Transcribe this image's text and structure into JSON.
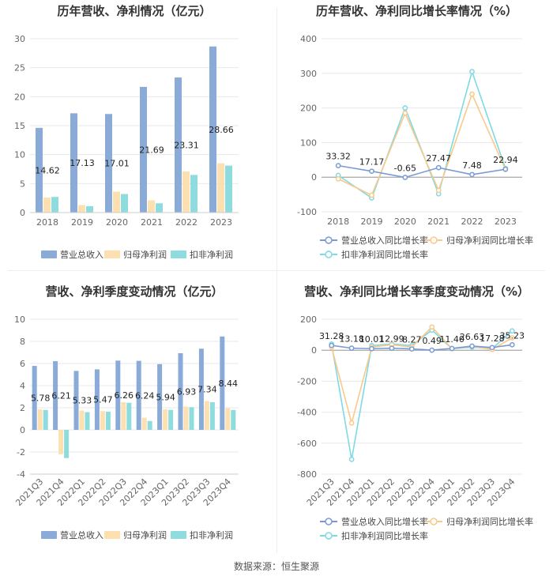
{
  "source": "数据来源：恒生聚源",
  "colors": {
    "revenue": "#8aaad8",
    "net": "#fde0b0",
    "deducted": "#8fdcde",
    "line_revenue": "#7a9ad6",
    "line_net": "#f9c98a",
    "line_deducted": "#7fd9e2"
  },
  "chart_data": [
    {
      "type": "bar",
      "title": "历年营收、净利情况（亿元）",
      "categories": [
        "2018",
        "2019",
        "2020",
        "2021",
        "2022",
        "2023"
      ],
      "series": [
        {
          "name": "营业总收入",
          "values": [
            14.62,
            17.13,
            17.01,
            21.69,
            23.31,
            28.66
          ]
        },
        {
          "name": "归母净利润",
          "values": [
            2.6,
            1.3,
            3.6,
            2.1,
            7.1,
            8.5
          ]
        },
        {
          "name": "扣非净利润",
          "values": [
            2.7,
            1.1,
            3.2,
            1.6,
            6.5,
            8.1
          ]
        }
      ],
      "labels": [
        "14.62",
        "17.13",
        "17.01",
        "21.69",
        "23.31",
        "28.66"
      ],
      "ylim": [
        0,
        30
      ],
      "yticks": [
        "0",
        "5",
        "10",
        "15",
        "20",
        "25",
        "30"
      ]
    },
    {
      "type": "line",
      "title": "历年营收、净利同比增长率情况（%）",
      "categories": [
        "2018",
        "2019",
        "2020",
        "2021",
        "2022",
        "2023"
      ],
      "series": [
        {
          "name": "营业总收入同比增长率",
          "values": [
            33.32,
            17.17,
            -0.65,
            27.47,
            7.48,
            22.94
          ]
        },
        {
          "name": "归母净利润同比增长率",
          "values": [
            -5,
            -52,
            185,
            -38,
            240,
            22
          ]
        },
        {
          "name": "扣非净利润同比增长率",
          "values": [
            5,
            -60,
            200,
            -48,
            305,
            25
          ]
        }
      ],
      "labels": [
        "33.32",
        "17.17",
        "-0.65",
        "27.47",
        "7.48",
        "22.94"
      ],
      "ylim": [
        -100,
        400
      ],
      "yticks": [
        "-100",
        "0",
        "100",
        "200",
        "300",
        "400"
      ]
    },
    {
      "type": "bar",
      "title": "营收、净利季度变动情况（亿元）",
      "categories": [
        "2021Q3",
        "2021Q4",
        "2022Q1",
        "2022Q2",
        "2022Q3",
        "2022Q4",
        "2023Q1",
        "2023Q2",
        "2023Q3",
        "2023Q4"
      ],
      "series": [
        {
          "name": "营业总收入",
          "values": [
            5.78,
            6.21,
            5.33,
            5.47,
            6.26,
            6.24,
            5.94,
            6.93,
            7.34,
            8.44
          ]
        },
        {
          "name": "归母净利润",
          "values": [
            1.85,
            -2.2,
            1.75,
            1.7,
            2.5,
            1.1,
            1.85,
            2.1,
            2.6,
            1.95
          ]
        },
        {
          "name": "扣非净利润",
          "values": [
            1.8,
            -2.55,
            1.6,
            1.65,
            2.45,
            0.8,
            1.8,
            2.05,
            2.5,
            1.8
          ]
        }
      ],
      "labels": [
        "5.78",
        "6.21",
        "5.33",
        "5.47",
        "6.26",
        "6.24",
        "5.94",
        "6.93",
        "7.34",
        "8.44"
      ],
      "ylim": [
        -4,
        10
      ],
      "yticks": [
        "-4",
        "-2",
        "0",
        "2",
        "4",
        "6",
        "8",
        "10"
      ]
    },
    {
      "type": "line",
      "title": "营收、净利同比增长率季度变动情况（%）",
      "categories": [
        "2021Q3",
        "2021Q4",
        "2022Q1",
        "2022Q2",
        "2022Q3",
        "2022Q4",
        "2023Q1",
        "2023Q2",
        "2023Q3",
        "2023Q4"
      ],
      "series": [
        {
          "name": "营业总收入同比增长率",
          "values": [
            31.28,
            13.18,
            10.01,
            12.99,
            8.27,
            0.49,
            11.4,
            26.63,
            17.28,
            35.23
          ]
        },
        {
          "name": "归母净利润同比增长率",
          "values": [
            20,
            -470,
            20,
            35,
            20,
            150,
            10,
            25,
            5,
            80
          ]
        },
        {
          "name": "扣非净利润同比增长率",
          "values": [
            40,
            -705,
            30,
            40,
            30,
            130,
            10,
            20,
            10,
            125
          ]
        }
      ],
      "labels": [
        "31.28",
        "13.18",
        "10.01",
        "12.99",
        "8.27",
        "0.49",
        "11.40",
        "26.63",
        "17.28",
        "35.23"
      ],
      "ylim": [
        -800,
        200
      ],
      "yticks": [
        "-800",
        "-600",
        "-400",
        "-200",
        "0",
        "200"
      ]
    }
  ]
}
